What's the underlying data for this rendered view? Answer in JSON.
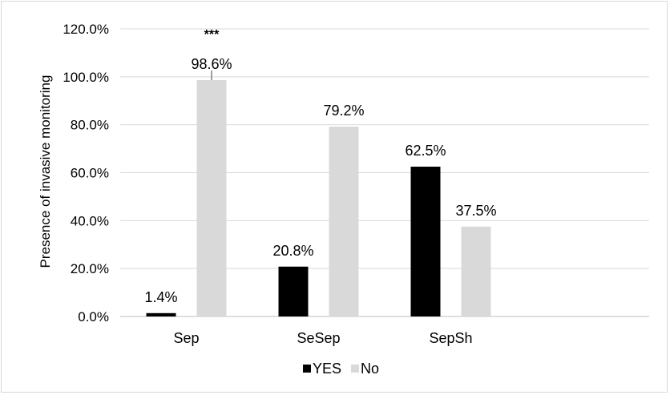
{
  "chart_data": {
    "type": "bar",
    "title": "",
    "xlabel": "",
    "ylabel": "Presence of invasive monitoring",
    "categories": [
      "Sep",
      "SeSep",
      "SepSh"
    ],
    "series": [
      {
        "name": "YES",
        "values": [
          1.4,
          20.8,
          62.5
        ],
        "labels": [
          "1.4%",
          "20.8%",
          "62.5%"
        ],
        "color": "#000000"
      },
      {
        "name": "No",
        "values": [
          98.6,
          79.2,
          37.5
        ],
        "labels": [
          "98.6%",
          "79.2%",
          "37.5%"
        ],
        "color": "#d9d9d9"
      }
    ],
    "ylim": [
      0,
      120
    ],
    "yticks": [
      "0.0%",
      "20.0%",
      "40.0%",
      "60.0%",
      "80.0%",
      "100.0%",
      "120.0%"
    ],
    "grid": true,
    "legend": "bottom",
    "annotations": [
      {
        "category": "Sep",
        "series": "No",
        "text": "***"
      }
    ]
  }
}
